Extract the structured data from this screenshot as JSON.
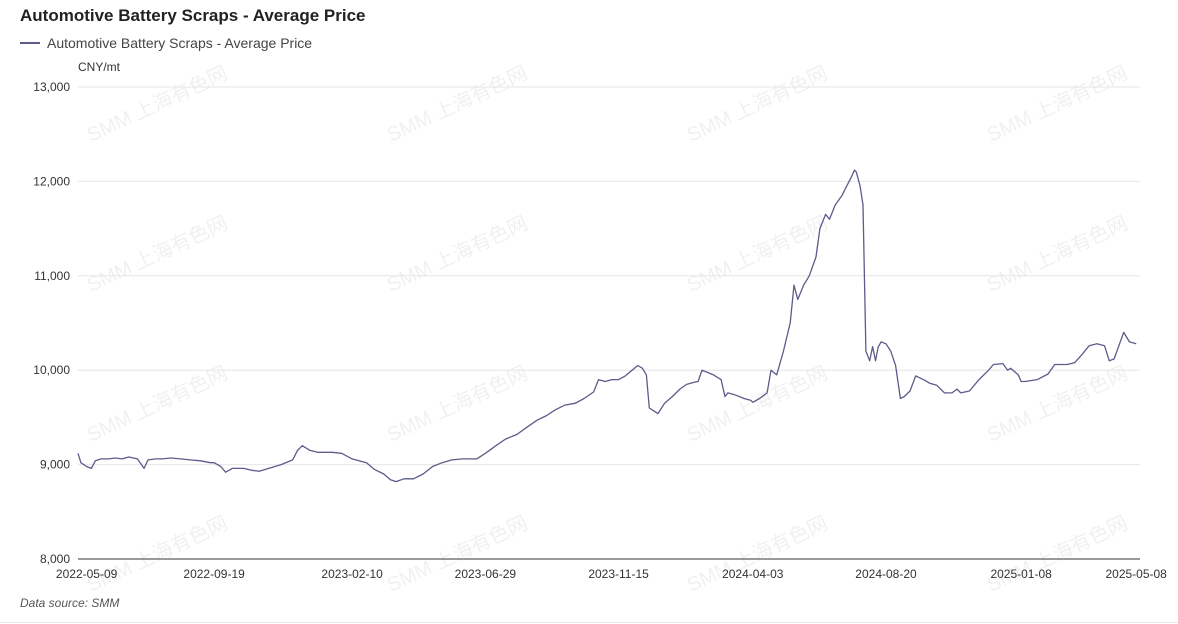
{
  "chart_data": {
    "type": "line",
    "title": "Automotive Battery Scraps - Average Price",
    "ylabel": "CNY/mt",
    "ylim": [
      8000,
      13000
    ],
    "yticks": [
      "8,000",
      "9,000",
      "10,000",
      "11,000",
      "12,000",
      "13,000"
    ],
    "xticks": [
      "2022-05-09",
      "2022-09-19",
      "2023-02-10",
      "2023-06-29",
      "2023-11-15",
      "2024-04-03",
      "2024-08-20",
      "2025-01-08",
      "2025-05-08"
    ],
    "grid": "horizontal",
    "legend_position": "top-left",
    "series": [
      {
        "name": "Automotive Battery Scraps - Average Price",
        "color": "#5b5c8a",
        "points": [
          [
            "2022-04-30",
            9120
          ],
          [
            "2022-05-03",
            9020
          ],
          [
            "2022-05-09",
            8980
          ],
          [
            "2022-05-14",
            8960
          ],
          [
            "2022-05-18",
            9040
          ],
          [
            "2022-05-24",
            9060
          ],
          [
            "2022-06-01",
            9060
          ],
          [
            "2022-06-08",
            9070
          ],
          [
            "2022-06-15",
            9060
          ],
          [
            "2022-06-22",
            9080
          ],
          [
            "2022-07-01",
            9060
          ],
          [
            "2022-07-08",
            8960
          ],
          [
            "2022-07-12",
            9050
          ],
          [
            "2022-07-20",
            9060
          ],
          [
            "2022-07-27",
            9060
          ],
          [
            "2022-08-05",
            9070
          ],
          [
            "2022-08-15",
            9060
          ],
          [
            "2022-08-25",
            9050
          ],
          [
            "2022-09-05",
            9040
          ],
          [
            "2022-09-15",
            9020
          ],
          [
            "2022-09-19",
            9020
          ],
          [
            "2022-09-26",
            8980
          ],
          [
            "2022-10-01",
            8920
          ],
          [
            "2022-10-08",
            8960
          ],
          [
            "2022-10-20",
            8960
          ],
          [
            "2022-10-28",
            8940
          ],
          [
            "2022-11-05",
            8930
          ],
          [
            "2022-11-15",
            8960
          ],
          [
            "2022-11-28",
            9000
          ],
          [
            "2022-12-10",
            9050
          ],
          [
            "2022-12-15",
            9150
          ],
          [
            "2022-12-20",
            9200
          ],
          [
            "2022-12-28",
            9150
          ],
          [
            "2023-01-05",
            9130
          ],
          [
            "2023-01-20",
            9130
          ],
          [
            "2023-01-30",
            9120
          ],
          [
            "2023-02-10",
            9060
          ],
          [
            "2023-02-25",
            9020
          ],
          [
            "2023-03-05",
            8950
          ],
          [
            "2023-03-15",
            8900
          ],
          [
            "2023-03-22",
            8840
          ],
          [
            "2023-03-28",
            8820
          ],
          [
            "2023-04-05",
            8850
          ],
          [
            "2023-04-15",
            8850
          ],
          [
            "2023-04-25",
            8900
          ],
          [
            "2023-05-05",
            8980
          ],
          [
            "2023-05-15",
            9020
          ],
          [
            "2023-05-25",
            9050
          ],
          [
            "2023-06-05",
            9060
          ],
          [
            "2023-06-20",
            9060
          ],
          [
            "2023-06-29",
            9120
          ],
          [
            "2023-07-10",
            9200
          ],
          [
            "2023-07-20",
            9270
          ],
          [
            "2023-08-01",
            9320
          ],
          [
            "2023-08-12",
            9400
          ],
          [
            "2023-08-22",
            9470
          ],
          [
            "2023-09-01",
            9520
          ],
          [
            "2023-09-10",
            9580
          ],
          [
            "2023-09-20",
            9630
          ],
          [
            "2023-10-01",
            9650
          ],
          [
            "2023-10-10",
            9700
          ],
          [
            "2023-10-20",
            9770
          ],
          [
            "2023-10-25",
            9900
          ],
          [
            "2023-11-01",
            9880
          ],
          [
            "2023-11-08",
            9900
          ],
          [
            "2023-11-15",
            9900
          ],
          [
            "2023-11-22",
            9940
          ],
          [
            "2023-11-28",
            9990
          ],
          [
            "2023-12-05",
            10050
          ],
          [
            "2023-12-10",
            10020
          ],
          [
            "2023-12-14",
            9950
          ],
          [
            "2023-12-17",
            9600
          ],
          [
            "2023-12-20",
            9580
          ],
          [
            "2023-12-26",
            9540
          ],
          [
            "2024-01-02",
            9650
          ],
          [
            "2024-01-10",
            9720
          ],
          [
            "2024-01-18",
            9800
          ],
          [
            "2024-01-25",
            9850
          ],
          [
            "2024-02-01",
            9870
          ],
          [
            "2024-02-06",
            9880
          ],
          [
            "2024-02-10",
            10000
          ],
          [
            "2024-02-15",
            9980
          ],
          [
            "2024-02-22",
            9950
          ],
          [
            "2024-03-01",
            9900
          ],
          [
            "2024-03-05",
            9720
          ],
          [
            "2024-03-08",
            9760
          ],
          [
            "2024-03-15",
            9740
          ],
          [
            "2024-03-25",
            9700
          ],
          [
            "2024-04-01",
            9680
          ],
          [
            "2024-04-03",
            9660
          ],
          [
            "2024-04-10",
            9700
          ],
          [
            "2024-04-18",
            9760
          ],
          [
            "2024-04-22",
            10000
          ],
          [
            "2024-04-28",
            9950
          ],
          [
            "2024-05-05",
            10200
          ],
          [
            "2024-05-12",
            10500
          ],
          [
            "2024-05-16",
            10900
          ],
          [
            "2024-05-20",
            10750
          ],
          [
            "2024-05-26",
            10900
          ],
          [
            "2024-06-01",
            11000
          ],
          [
            "2024-06-08",
            11200
          ],
          [
            "2024-06-12",
            11500
          ],
          [
            "2024-06-18",
            11650
          ],
          [
            "2024-06-22",
            11600
          ],
          [
            "2024-06-28",
            11750
          ],
          [
            "2024-07-05",
            11850
          ],
          [
            "2024-07-10",
            11950
          ],
          [
            "2024-07-15",
            12050
          ],
          [
            "2024-07-18",
            12120
          ],
          [
            "2024-07-20",
            12100
          ],
          [
            "2024-07-24",
            11950
          ],
          [
            "2024-07-27",
            11750
          ],
          [
            "2024-07-30",
            10200
          ],
          [
            "2024-08-03",
            10100
          ],
          [
            "2024-08-06",
            10250
          ],
          [
            "2024-08-09",
            10100
          ],
          [
            "2024-08-12",
            10250
          ],
          [
            "2024-08-15",
            10300
          ],
          [
            "2024-08-20",
            10280
          ],
          [
            "2024-08-25",
            10200
          ],
          [
            "2024-08-30",
            10050
          ],
          [
            "2024-09-04",
            9700
          ],
          [
            "2024-09-08",
            9720
          ],
          [
            "2024-09-14",
            9780
          ],
          [
            "2024-09-20",
            9940
          ],
          [
            "2024-09-28",
            9900
          ],
          [
            "2024-10-05",
            9860
          ],
          [
            "2024-10-12",
            9840
          ],
          [
            "2024-10-20",
            9760
          ],
          [
            "2024-10-28",
            9760
          ],
          [
            "2024-11-02",
            9800
          ],
          [
            "2024-11-06",
            9760
          ],
          [
            "2024-11-15",
            9780
          ],
          [
            "2024-11-25",
            9900
          ],
          [
            "2024-12-05",
            10000
          ],
          [
            "2024-12-10",
            10060
          ],
          [
            "2024-12-20",
            10070
          ],
          [
            "2024-12-25",
            10000
          ],
          [
            "2024-12-28",
            10020
          ],
          [
            "2025-01-05",
            9950
          ],
          [
            "2025-01-08",
            9880
          ],
          [
            "2025-01-12",
            9880
          ],
          [
            "2025-01-25",
            9900
          ],
          [
            "2025-02-05",
            9960
          ],
          [
            "2025-02-12",
            10060
          ],
          [
            "2025-02-25",
            10060
          ],
          [
            "2025-03-05",
            10080
          ],
          [
            "2025-03-12",
            10160
          ],
          [
            "2025-03-20",
            10260
          ],
          [
            "2025-03-28",
            10280
          ],
          [
            "2025-04-05",
            10260
          ],
          [
            "2025-04-10",
            10100
          ],
          [
            "2025-04-15",
            10120
          ],
          [
            "2025-04-20",
            10260
          ],
          [
            "2025-04-25",
            10400
          ],
          [
            "2025-05-01",
            10300
          ],
          [
            "2025-05-08",
            10280
          ]
        ]
      }
    ]
  },
  "watermark": "SMM 上海有色网",
  "source": "Data source:  SMM"
}
